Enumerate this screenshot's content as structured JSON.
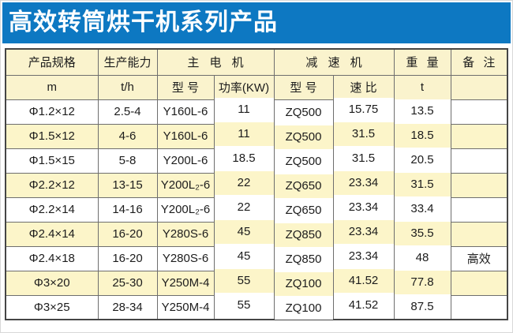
{
  "banner": {
    "title": "高效转筒烘干机系列产品"
  },
  "colors": {
    "banner_bg": "#0d78c2",
    "header_bg": "#faf3cd",
    "row_alt_bg": "#fcf5c9",
    "grid_border": "#6e6e6e",
    "outer_border": "#454545",
    "text": "#1c1c1c",
    "banner_text": "#ffffff"
  },
  "table": {
    "group_headers": [
      "产品规格",
      "生产能力",
      "主 电 机",
      "减 速 机",
      "重 量",
      "备 注"
    ],
    "sub_headers": [
      "m",
      "t/h",
      "型 号",
      "功率(KW)",
      "型 号",
      "速 比",
      "t",
      ""
    ],
    "rows": [
      {
        "spec": "Φ1.2×12",
        "capacity": "2.5-4",
        "motor_model": "Y160L-6",
        "power": "11",
        "reducer_model": "ZQ500",
        "ratio": "15.75",
        "weight": "13.5",
        "note": ""
      },
      {
        "spec": "Φ1.5×12",
        "capacity": "4-6",
        "motor_model": "Y160L-6",
        "power": "11",
        "reducer_model": "ZQ500",
        "ratio": "31.5",
        "weight": "18.5",
        "note": ""
      },
      {
        "spec": "Φ1.5×15",
        "capacity": "5-8",
        "motor_model": "Y200L-6",
        "power": "18.5",
        "reducer_model": "ZQ500",
        "ratio": "31.5",
        "weight": "20.5",
        "note": ""
      },
      {
        "spec": "Φ2.2×12",
        "capacity": "13-15",
        "motor_model": "Y200L₂-6",
        "power": "22",
        "reducer_model": "ZQ650",
        "ratio": "23.34",
        "weight": "31.5",
        "note": ""
      },
      {
        "spec": "Φ2.2×14",
        "capacity": "14-16",
        "motor_model": "Y200L₂-6",
        "power": "22",
        "reducer_model": "ZQ650",
        "ratio": "23.34",
        "weight": "33.4",
        "note": ""
      },
      {
        "spec": "Φ2.4×14",
        "capacity": "16-20",
        "motor_model": "Y280S-6",
        "power": "45",
        "reducer_model": "ZQ850",
        "ratio": "23.34",
        "weight": "35.5",
        "note": ""
      },
      {
        "spec": "Φ2.4×18",
        "capacity": "16-20",
        "motor_model": "Y280S-6",
        "power": "45",
        "reducer_model": "ZQ850",
        "ratio": "23.34",
        "weight": "48",
        "note": "高效"
      },
      {
        "spec": "Φ3×20",
        "capacity": "25-30",
        "motor_model": "Y250M-4",
        "power": "55",
        "reducer_model": "ZQ100",
        "ratio": "41.52",
        "weight": "77.8",
        "note": ""
      },
      {
        "spec": "Φ3×25",
        "capacity": "28-34",
        "motor_model": "Y250M-4",
        "power": "55",
        "reducer_model": "ZQ100",
        "ratio": "41.52",
        "weight": "87.5",
        "note": ""
      }
    ]
  }
}
